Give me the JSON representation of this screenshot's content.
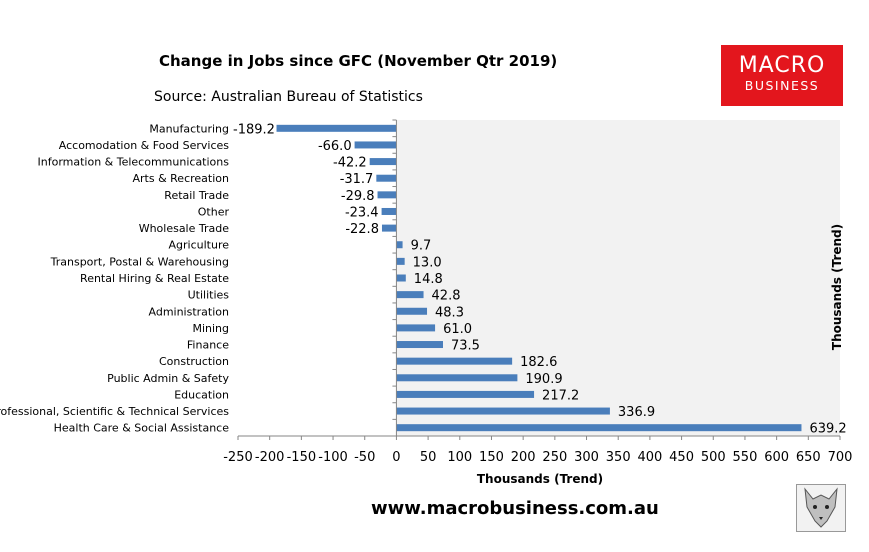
{
  "header": {
    "title": "Change in Jobs since GFC (November Qtr 2019)",
    "source": "Source: Australian Bureau of Statistics"
  },
  "logo": {
    "line1": "MACRO",
    "line2": "BUSINESS",
    "bg": "#e3161d"
  },
  "footer": {
    "website": "www.macrobusiness.com.au"
  },
  "chart_data": {
    "type": "bar",
    "orientation": "horizontal",
    "categories": [
      "Manufacturing",
      "Accomodation & Food Services",
      "Information & Telecommunications",
      "Arts & Recreation",
      "Retail Trade",
      "Other",
      "Wholesale Trade",
      "Agriculture",
      "Transport, Postal & Warehousing",
      "Rental Hiring & Real Estate",
      "Utilities",
      "Administration",
      "Mining",
      "Finance",
      "Construction",
      "Public Admin & Safety",
      "Education",
      "Professional, Scientific & Technical Services",
      "Health Care & Social Assistance"
    ],
    "values": [
      -189.2,
      -66.0,
      -42.2,
      -31.7,
      -29.8,
      -23.4,
      -22.8,
      9.7,
      13.0,
      14.8,
      42.8,
      48.3,
      61.0,
      73.5,
      182.6,
      190.9,
      217.2,
      336.9,
      639.2
    ],
    "labels": [
      "-189.2",
      "-66.0",
      "-42.2",
      "-31.7",
      "-29.8",
      "-23.4",
      "-22.8",
      "9.7",
      "13.0",
      "14.8",
      "42.8",
      "48.3",
      "61.0",
      "73.5",
      "182.6",
      "190.9",
      "217.2",
      "336.9",
      "639.2"
    ],
    "xlim": [
      -250,
      700
    ],
    "xticks": [
      -250,
      -200,
      -150,
      -100,
      -50,
      0,
      50,
      100,
      150,
      200,
      250,
      300,
      350,
      400,
      450,
      500,
      550,
      600,
      650,
      700
    ],
    "xlabel": "Thousands (Trend)",
    "ylabel_right": "Thousands (Trend)",
    "bar_color": "#4a7ebb",
    "plot_bg": "#f2f2f2",
    "grid": false
  }
}
